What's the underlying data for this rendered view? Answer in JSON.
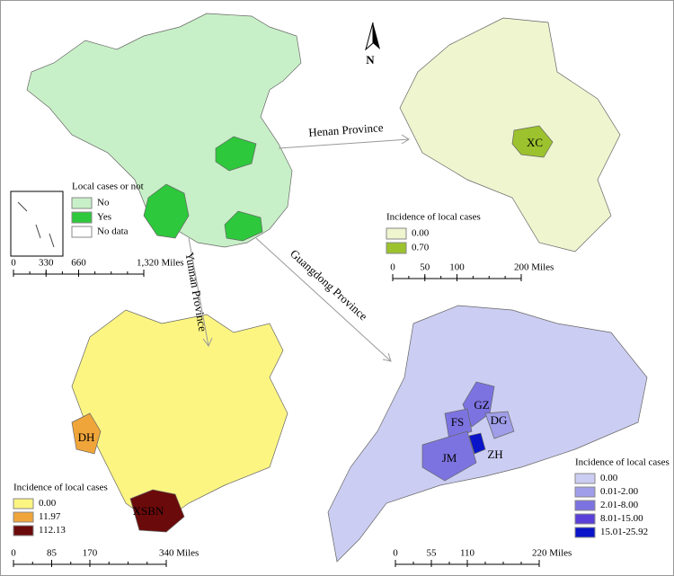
{
  "north_label": "N",
  "china": {
    "legend": {
      "title": "Local cases or not",
      "items": [
        {
          "label": "No",
          "color": "#c8f0c8"
        },
        {
          "label": "Yes",
          "color": "#2dc83c"
        },
        {
          "label": "No data",
          "color": "#ffffff"
        }
      ]
    },
    "scale": [
      0,
      330,
      660,
      {
        "value": 1320,
        "label": "1,320 Miles"
      }
    ]
  },
  "arrows": {
    "henan": "Henan Province",
    "guangdong": "Guangdong Province",
    "yunnan": "Yunnan Province"
  },
  "henan": {
    "labels": [
      "XC"
    ],
    "legend": {
      "title": "Incidence of local cases",
      "items": [
        {
          "label": "0.00",
          "color": "#eef5cf"
        },
        {
          "label": "0.70",
          "color": "#9cc22e"
        }
      ]
    },
    "scale": [
      0,
      50,
      100,
      {
        "value": 200,
        "label": "200 Miles"
      }
    ]
  },
  "yunnan": {
    "labels": [
      "DH",
      "XSBN"
    ],
    "legend": {
      "title": "Incidence of local cases",
      "items": [
        {
          "label": "0.00",
          "color": "#fdf582"
        },
        {
          "label": "11.97",
          "color": "#f0a53a"
        },
        {
          "label": "112.13",
          "color": "#6b0a0a"
        }
      ]
    },
    "scale": [
      0,
      85,
      170,
      {
        "value": 340,
        "label": "340 Miles"
      }
    ]
  },
  "guangdong": {
    "labels": [
      "GZ",
      "FS",
      "DG",
      "JM",
      "ZH"
    ],
    "legend": {
      "title": "Incidence of local cases",
      "items": [
        {
          "label": "0.00",
          "color": "#cccdf2"
        },
        {
          "label": "0.01-2.00",
          "color": "#a09ee8"
        },
        {
          "label": "2.01-8.00",
          "color": "#7d73e0"
        },
        {
          "label": "8.01-15.00",
          "color": "#5a3fd8"
        },
        {
          "label": "15.01-25.92",
          "color": "#0a14c8"
        }
      ]
    },
    "scale": [
      0,
      55,
      110,
      {
        "value": 220,
        "label": "220 Miles"
      }
    ]
  }
}
